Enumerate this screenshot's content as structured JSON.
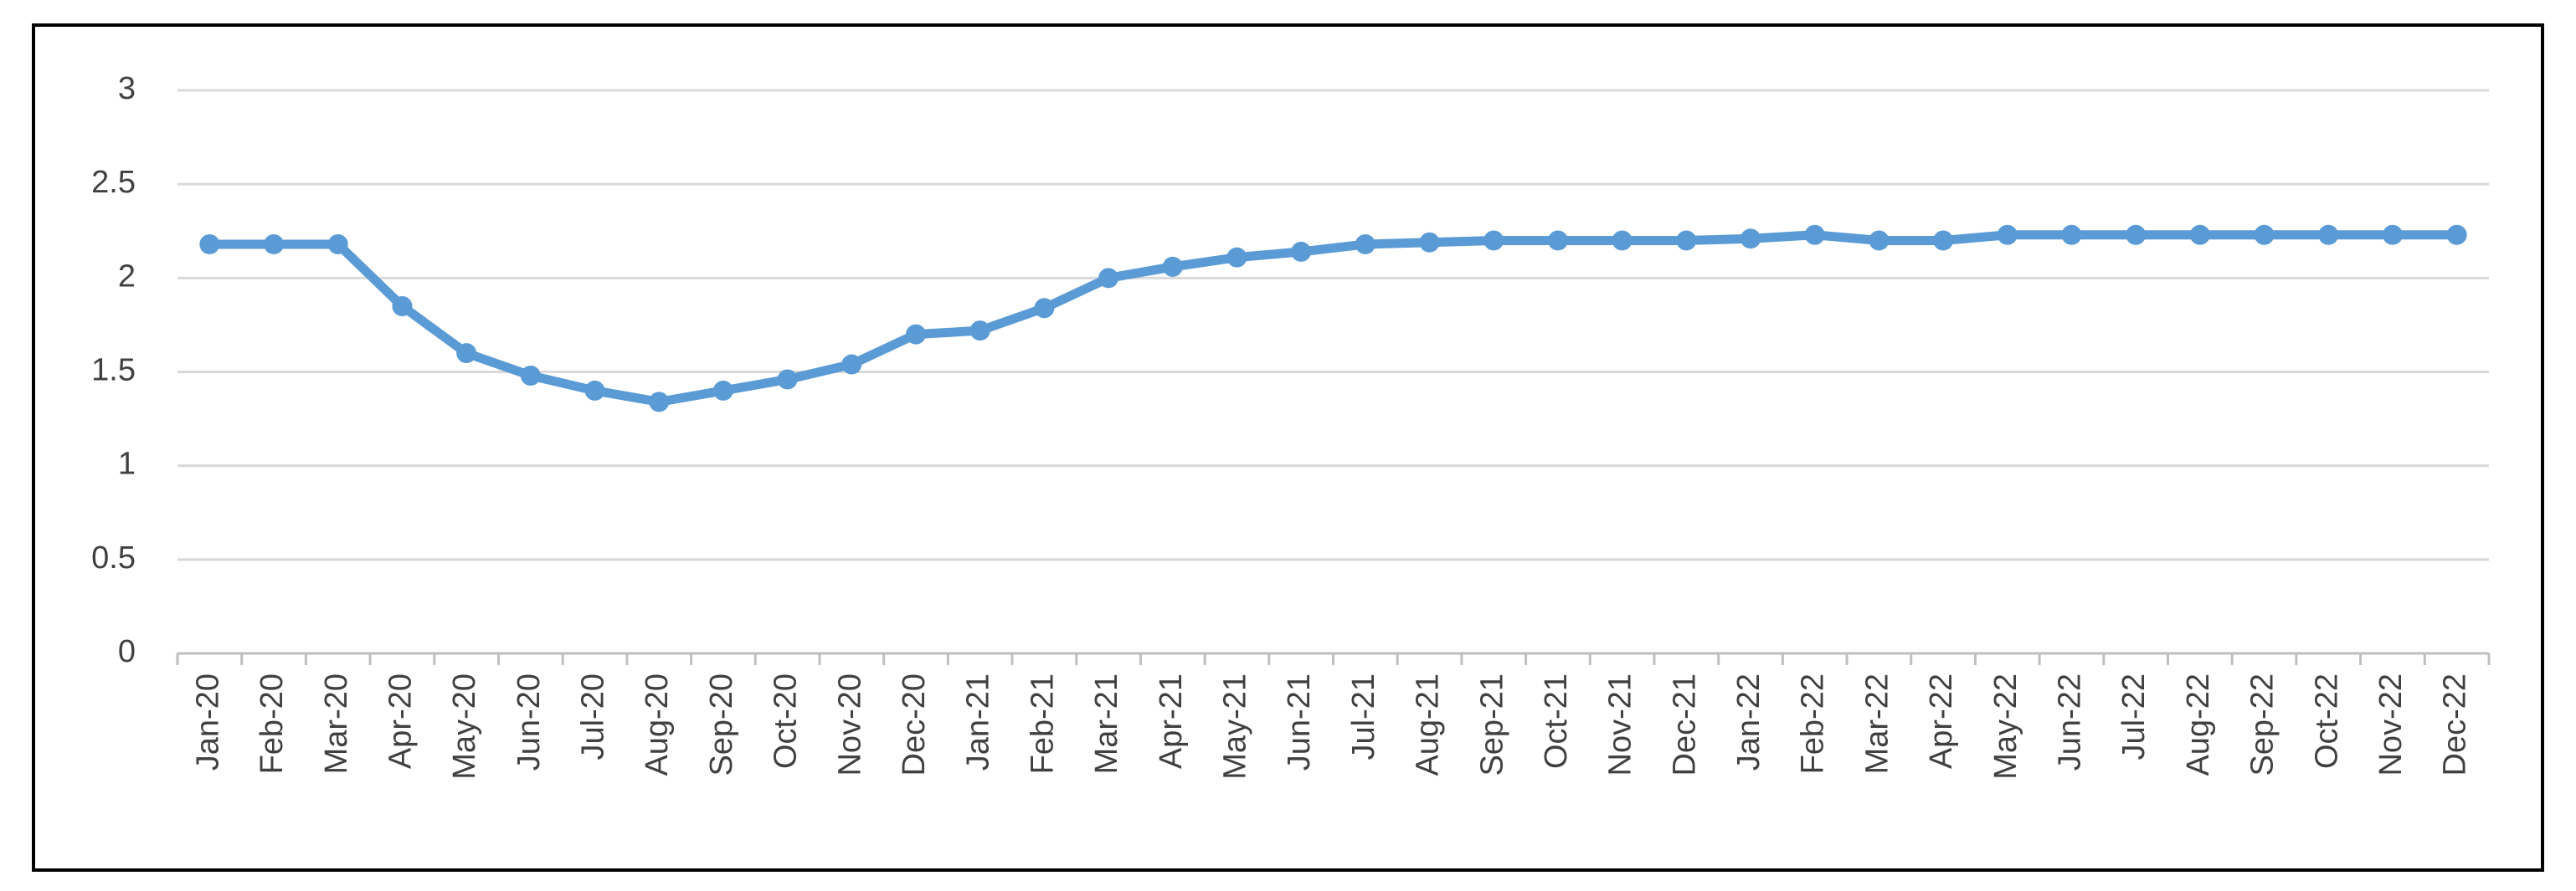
{
  "chart_data": {
    "type": "line",
    "categories": [
      "Jan-20",
      "Feb-20",
      "Mar-20",
      "Apr-20",
      "May-20",
      "Jun-20",
      "Jul-20",
      "Aug-20",
      "Sep-20",
      "Oct-20",
      "Nov-20",
      "Dec-20",
      "Jan-21",
      "Feb-21",
      "Mar-21",
      "Apr-21",
      "May-21",
      "Jun-21",
      "Jul-21",
      "Aug-21",
      "Sep-21",
      "Oct-21",
      "Nov-21",
      "Dec-21",
      "Jan-22",
      "Feb-22",
      "Mar-22",
      "Apr-22",
      "May-22",
      "Jun-22",
      "Jul-22",
      "Aug-22",
      "Sep-22",
      "Oct-22",
      "Nov-22",
      "Dec-22"
    ],
    "values": [
      2.18,
      2.18,
      2.18,
      1.85,
      1.6,
      1.48,
      1.4,
      1.34,
      1.4,
      1.46,
      1.54,
      1.7,
      1.72,
      1.84,
      2.0,
      2.06,
      2.11,
      2.14,
      2.18,
      2.19,
      2.2,
      2.2,
      2.2,
      2.2,
      2.21,
      2.23,
      2.2,
      2.2,
      2.23,
      2.23,
      2.23,
      2.23,
      2.23,
      2.23,
      2.23,
      2.23
    ],
    "color": "#5b9bd5",
    "ylim": [
      0,
      3
    ],
    "yticks": [
      0,
      0.5,
      1,
      1.5,
      2,
      2.5,
      3
    ],
    "grid": true
  }
}
